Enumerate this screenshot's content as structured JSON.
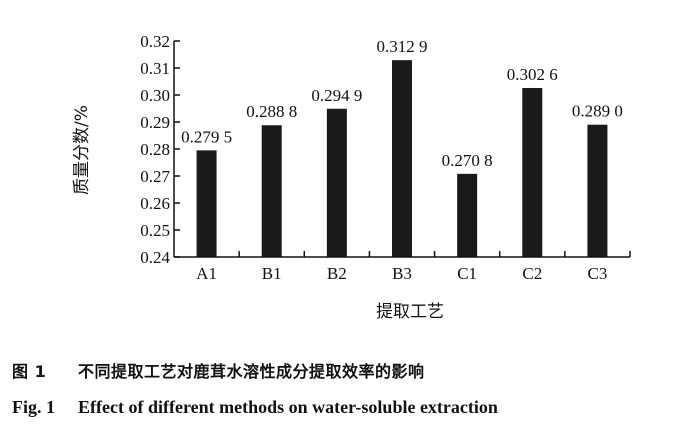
{
  "chart_data": {
    "type": "bar",
    "categories": [
      "A1",
      "B1",
      "B2",
      "B3",
      "C1",
      "C2",
      "C3"
    ],
    "values": [
      0.2795,
      0.2888,
      0.2949,
      0.3129,
      0.2708,
      0.3026,
      0.289
    ],
    "value_labels": [
      "0.279 5",
      "0.288 8",
      "0.294 9",
      "0.312 9",
      "0.270 8",
      "0.302 6",
      "0.289 0"
    ],
    "ylim": [
      0.24,
      0.32
    ],
    "yticks": [
      0.24,
      0.25,
      0.26,
      0.27,
      0.28,
      0.29,
      0.3,
      0.31,
      0.32
    ],
    "ytick_labels": [
      "0.24",
      "0.25",
      "0.26",
      "0.27",
      "0.28",
      "0.29",
      "0.30",
      "0.31",
      "0.32"
    ],
    "xlabel": "提取工艺",
    "ylabel": "质量分数/%",
    "title": "",
    "grid": false,
    "bar_color": "#1a1a1a"
  },
  "caption": {
    "cn_label": "图 1",
    "cn_text": "不同提取工艺对鹿茸水溶性成分提取效率的影响",
    "en_label": "Fig. 1",
    "en_text": "Effect of different methods on water-soluble extraction"
  }
}
